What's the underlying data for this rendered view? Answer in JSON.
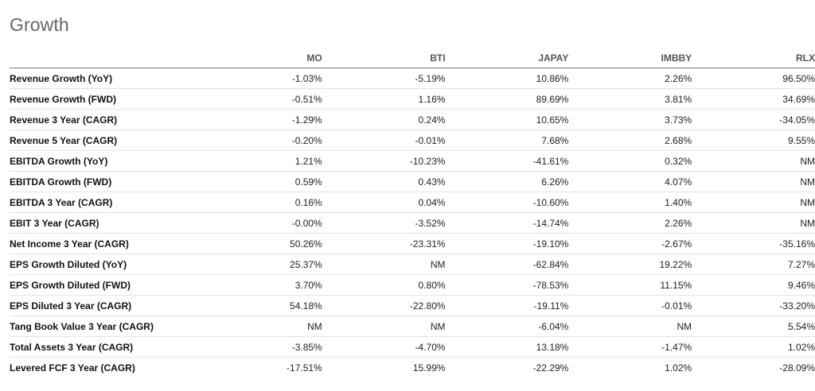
{
  "section": {
    "title": "Growth"
  },
  "columns": [
    "",
    "MO",
    "BTI",
    "JAPAY",
    "IMBBY",
    "RLX"
  ],
  "rows": [
    {
      "metric": "Revenue Growth (YoY)",
      "values": [
        "-1.03%",
        "-5.19%",
        "10.86%",
        "2.26%",
        "96.50%"
      ]
    },
    {
      "metric": "Revenue Growth (FWD)",
      "values": [
        "-0.51%",
        "1.16%",
        "89.69%",
        "3.81%",
        "34.69%"
      ]
    },
    {
      "metric": "Revenue 3 Year (CAGR)",
      "values": [
        "-1.29%",
        "0.24%",
        "10.65%",
        "3.73%",
        "-34.05%"
      ]
    },
    {
      "metric": "Revenue 5 Year (CAGR)",
      "values": [
        "-0.20%",
        "-0.01%",
        "7.68%",
        "2.68%",
        "9.55%"
      ]
    },
    {
      "metric": "EBITDA Growth (YoY)",
      "values": [
        "1.21%",
        "-10.23%",
        "-41.61%",
        "0.32%",
        "NM"
      ]
    },
    {
      "metric": "EBITDA Growth (FWD)",
      "values": [
        "0.59%",
        "0.43%",
        "6.26%",
        "4.07%",
        "NM"
      ]
    },
    {
      "metric": "EBITDA 3 Year (CAGR)",
      "values": [
        "0.16%",
        "0.04%",
        "-10.60%",
        "1.40%",
        "NM"
      ]
    },
    {
      "metric": "EBIT 3 Year (CAGR)",
      "values": [
        "-0.00%",
        "-3.52%",
        "-14.74%",
        "2.26%",
        "NM"
      ]
    },
    {
      "metric": "Net Income 3 Year (CAGR)",
      "values": [
        "50.26%",
        "-23.31%",
        "-19.10%",
        "-2.67%",
        "-35.16%"
      ]
    },
    {
      "metric": "EPS Growth Diluted (YoY)",
      "values": [
        "25.37%",
        "NM",
        "-62.84%",
        "19.22%",
        "7.27%"
      ]
    },
    {
      "metric": "EPS Growth Diluted (FWD)",
      "values": [
        "3.70%",
        "0.80%",
        "-78.53%",
        "11.15%",
        "9.46%"
      ]
    },
    {
      "metric": "EPS Diluted 3 Year (CAGR)",
      "values": [
        "54.18%",
        "-22.80%",
        "-19.11%",
        "-0.01%",
        "-33.20%"
      ]
    },
    {
      "metric": "Tang Book Value 3 Year (CAGR)",
      "values": [
        "NM",
        "NM",
        "-6.04%",
        "NM",
        "5.54%"
      ]
    },
    {
      "metric": "Total Assets 3 Year (CAGR)",
      "values": [
        "-3.85%",
        "-4.70%",
        "13.18%",
        "-1.47%",
        "1.02%"
      ]
    },
    {
      "metric": "Levered FCF 3 Year (CAGR)",
      "values": [
        "-17.51%",
        "15.99%",
        "-22.29%",
        "1.02%",
        "-28.09%"
      ]
    }
  ]
}
